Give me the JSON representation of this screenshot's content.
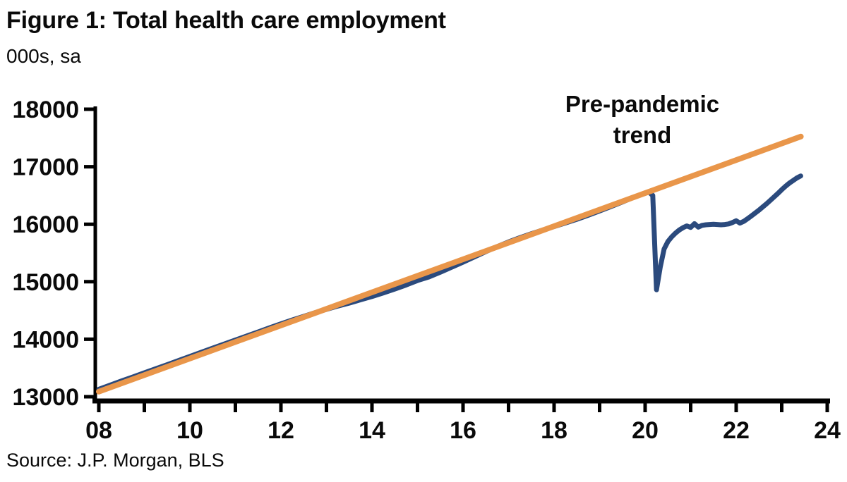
{
  "page": {
    "title": "Figure 1: Total health care employment",
    "subtitle": "000s, sa",
    "source": "Source: J.P. Morgan, BLS"
  },
  "annotation": {
    "line1": "Pre-pandemic",
    "line2": "trend"
  },
  "colors": {
    "actual_line": "#2B4A7D",
    "trend_line": "#E9964A",
    "axis": "#000000",
    "text": "#0a0a0a"
  },
  "chart_data": {
    "type": "line",
    "title": "Figure 1: Total health care employment",
    "ylabel": "000s, sa",
    "xlabel": "",
    "grid": false,
    "legend_position": "none (inline text annotation near trend line)",
    "x_axis": {
      "min": 2008,
      "max": 2024,
      "minor_tick_every_years": 1,
      "labeled_tick_years": [
        2008,
        2010,
        2012,
        2014,
        2016,
        2018,
        2020,
        2022,
        2024
      ],
      "tick_labels": [
        "08",
        "10",
        "12",
        "14",
        "16",
        "18",
        "20",
        "22",
        "24"
      ]
    },
    "y_axis": {
      "min": 13000,
      "max": 18000,
      "ticks": [
        13000,
        14000,
        15000,
        16000,
        17000,
        18000
      ],
      "tick_labels": [
        "13000",
        "14000",
        "15000",
        "16000",
        "17000",
        "18000"
      ]
    },
    "series": [
      {
        "name": "Total health care employment (000s, sa)",
        "color": "#2B4A7D",
        "stroke_width": 7,
        "x": [
          2008.0,
          2008.25,
          2008.5,
          2008.75,
          2009.0,
          2009.25,
          2009.5,
          2009.75,
          2010.0,
          2010.25,
          2010.5,
          2010.75,
          2011.0,
          2011.25,
          2011.5,
          2011.75,
          2012.0,
          2012.25,
          2012.5,
          2012.75,
          2013.0,
          2013.25,
          2013.5,
          2013.75,
          2014.0,
          2014.25,
          2014.5,
          2014.75,
          2015.0,
          2015.25,
          2015.5,
          2015.75,
          2016.0,
          2016.25,
          2016.5,
          2016.75,
          2017.0,
          2017.25,
          2017.5,
          2017.75,
          2018.0,
          2018.25,
          2018.5,
          2018.75,
          2019.0,
          2019.25,
          2019.5,
          2019.75,
          2020.0,
          2020.083,
          2020.167,
          2020.25,
          2020.333,
          2020.417,
          2020.5,
          2020.583,
          2020.667,
          2020.75,
          2020.833,
          2020.917,
          2021.0,
          2021.083,
          2021.167,
          2021.25,
          2021.333,
          2021.417,
          2021.5,
          2021.583,
          2021.667,
          2021.75,
          2021.833,
          2021.917,
          2022.0,
          2022.083,
          2022.167,
          2022.25,
          2022.333,
          2022.417,
          2022.5,
          2022.583,
          2022.667,
          2022.75,
          2022.833,
          2022.917,
          2023.0,
          2023.083,
          2023.167,
          2023.25,
          2023.333,
          2023.417
        ],
        "values": [
          13130,
          13202,
          13274,
          13344,
          13416,
          13486,
          13558,
          13630,
          13701,
          13773,
          13844,
          13916,
          13986,
          14056,
          14128,
          14198,
          14268,
          14334,
          14398,
          14462,
          14520,
          14577,
          14629,
          14686,
          14743,
          14805,
          14872,
          14944,
          15021,
          15083,
          15165,
          15252,
          15339,
          15431,
          15523,
          15610,
          15692,
          15766,
          15834,
          15898,
          15960,
          16022,
          16086,
          16156,
          16230,
          16308,
          16387,
          16468,
          16540,
          16560,
          16500,
          14860,
          15260,
          15570,
          15700,
          15780,
          15845,
          15900,
          15940,
          15970,
          15945,
          16010,
          15950,
          15980,
          15990,
          15995,
          16000,
          15995,
          15990,
          15995,
          16005,
          16030,
          16060,
          16020,
          16050,
          16095,
          16145,
          16195,
          16245,
          16300,
          16355,
          16415,
          16475,
          16535,
          16600,
          16660,
          16715,
          16760,
          16805,
          16840
        ]
      },
      {
        "name": "Pre-pandemic trend",
        "color": "#E9964A",
        "stroke_width": 8,
        "x": [
          2008.0,
          2023.42
        ],
        "values": [
          13090,
          17525
        ]
      }
    ]
  }
}
